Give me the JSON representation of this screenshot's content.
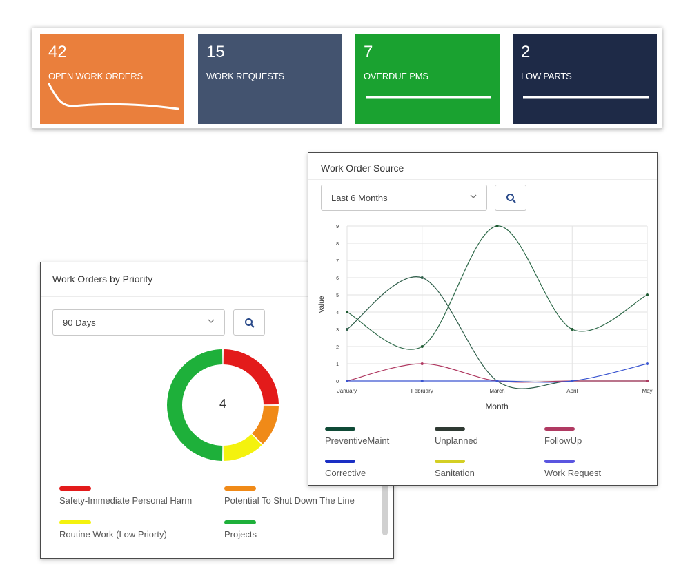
{
  "kpis": [
    {
      "value": "42",
      "label": "OPEN WORK ORDERS",
      "color": "#ea7f3c"
    },
    {
      "value": "15",
      "label": "WORK REQUESTS",
      "color": "#43536f"
    },
    {
      "value": "7",
      "label": "OVERDUE PMS",
      "color": "#1aa230"
    },
    {
      "value": "2",
      "label": "LOW PARTS",
      "color": "#1e2a47"
    }
  ],
  "priority": {
    "title": "Work Orders by Priority",
    "range_select": "90 Days",
    "center_value": "4",
    "legend": [
      {
        "label": "Safety-Immediate Personal Harm",
        "color": "#e31b1b"
      },
      {
        "label": "Potential To Shut Down The Line",
        "color": "#f08a18"
      },
      {
        "label": "Routine Work (Low Priorty)",
        "color": "#f4f20e"
      },
      {
        "label": "Projects",
        "color": "#1eb03a"
      }
    ]
  },
  "source": {
    "title": "Work Order Source",
    "range_select": "Last 6 Months",
    "legend": [
      {
        "label": "PreventiveMaint",
        "color": "#0f4a36"
      },
      {
        "label": "Unplanned",
        "color": "#2f3a33"
      },
      {
        "label": "FollowUp",
        "color": "#b03a62"
      },
      {
        "label": "Corrective",
        "color": "#1a2fc4"
      },
      {
        "label": "Sanitation",
        "color": "#d4cf24"
      },
      {
        "label": "Work Request",
        "color": "#5a55e0"
      }
    ]
  },
  "chart_data": [
    {
      "type": "pie",
      "title": "",
      "categories": [
        "Safety-Immediate Personal Harm",
        "Potential To Shut Down The Line",
        "Routine Work (Low Priorty)",
        "Projects"
      ],
      "values": [
        1,
        0.5,
        0.5,
        2
      ]
    },
    {
      "type": "line",
      "title": "",
      "xlabel": "Month",
      "ylabel": "Value",
      "categories": [
        "January",
        "February",
        "March",
        "April",
        "May"
      ],
      "ylim": [
        0,
        9
      ],
      "yticks": [
        "0",
        "1",
        "2",
        "3",
        "4",
        "5",
        "6",
        "7",
        "8",
        "9"
      ],
      "grid": true,
      "series": [
        {
          "name": "PreventiveMaint",
          "color": "#2f5e4a",
          "values": [
            3,
            6,
            0,
            0,
            0
          ]
        },
        {
          "name": "Unplanned",
          "color": "#2f6a4a",
          "values": [
            4,
            2,
            9,
            3,
            5
          ]
        },
        {
          "name": "FollowUp",
          "color": "#b03a62",
          "values": [
            0,
            1,
            0,
            0,
            0
          ]
        },
        {
          "name": "Work Request",
          "color": "#3a55d0",
          "values": [
            0,
            0,
            0,
            0,
            1
          ]
        }
      ]
    }
  ]
}
